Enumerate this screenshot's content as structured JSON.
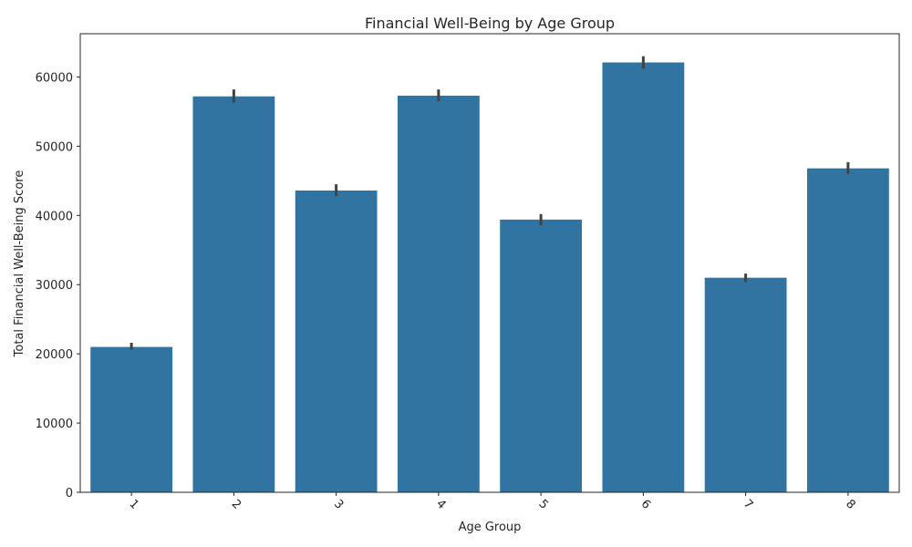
{
  "chart_data": {
    "type": "bar",
    "title": "Financial Well-Being by Age Group",
    "xlabel": "Age Group",
    "ylabel": "Total Financial Well-Being Score",
    "categories": [
      "1",
      "2",
      "3",
      "4",
      "5",
      "6",
      "7",
      "8"
    ],
    "values": [
      21000,
      57200,
      43600,
      57300,
      39400,
      62100,
      31000,
      46800
    ],
    "error_low": [
      20600,
      56300,
      42800,
      56500,
      38600,
      61200,
      30400,
      46000
    ],
    "error_high": [
      21600,
      58200,
      44500,
      58200,
      40200,
      63000,
      31600,
      47700
    ],
    "ylim": [
      0,
      66250
    ],
    "yticks": [
      0,
      10000,
      20000,
      30000,
      40000,
      50000,
      60000
    ],
    "grid": false,
    "colors": {
      "bar": "#3274a1",
      "errorbar": "#424242",
      "axis": "#262626"
    }
  }
}
